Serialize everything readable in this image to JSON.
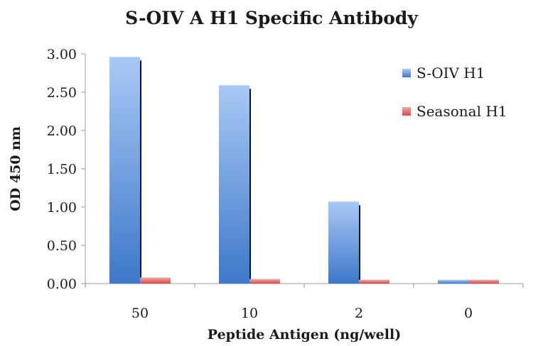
{
  "chart_data": {
    "type": "bar",
    "title": "S-OIV A H1 Specific Antibody",
    "xlabel": "Peptide Antigen (ng/well)",
    "ylabel": "OD 450 nm",
    "categories": [
      "50",
      "10",
      "2",
      "0"
    ],
    "series": [
      {
        "name": "S-OIV H1",
        "values": [
          2.96,
          2.59,
          1.07,
          0.05
        ],
        "color": "#6f9fe0"
      },
      {
        "name": "Seasonal H1",
        "values": [
          0.08,
          0.06,
          0.05,
          0.05
        ],
        "color": "#e86b6b"
      }
    ],
    "ylim": [
      0,
      3
    ],
    "yticks": [
      "0.00",
      "0.50",
      "1.00",
      "1.50",
      "2.00",
      "2.50",
      "3.00"
    ],
    "grid": false,
    "legend_position": "right"
  }
}
